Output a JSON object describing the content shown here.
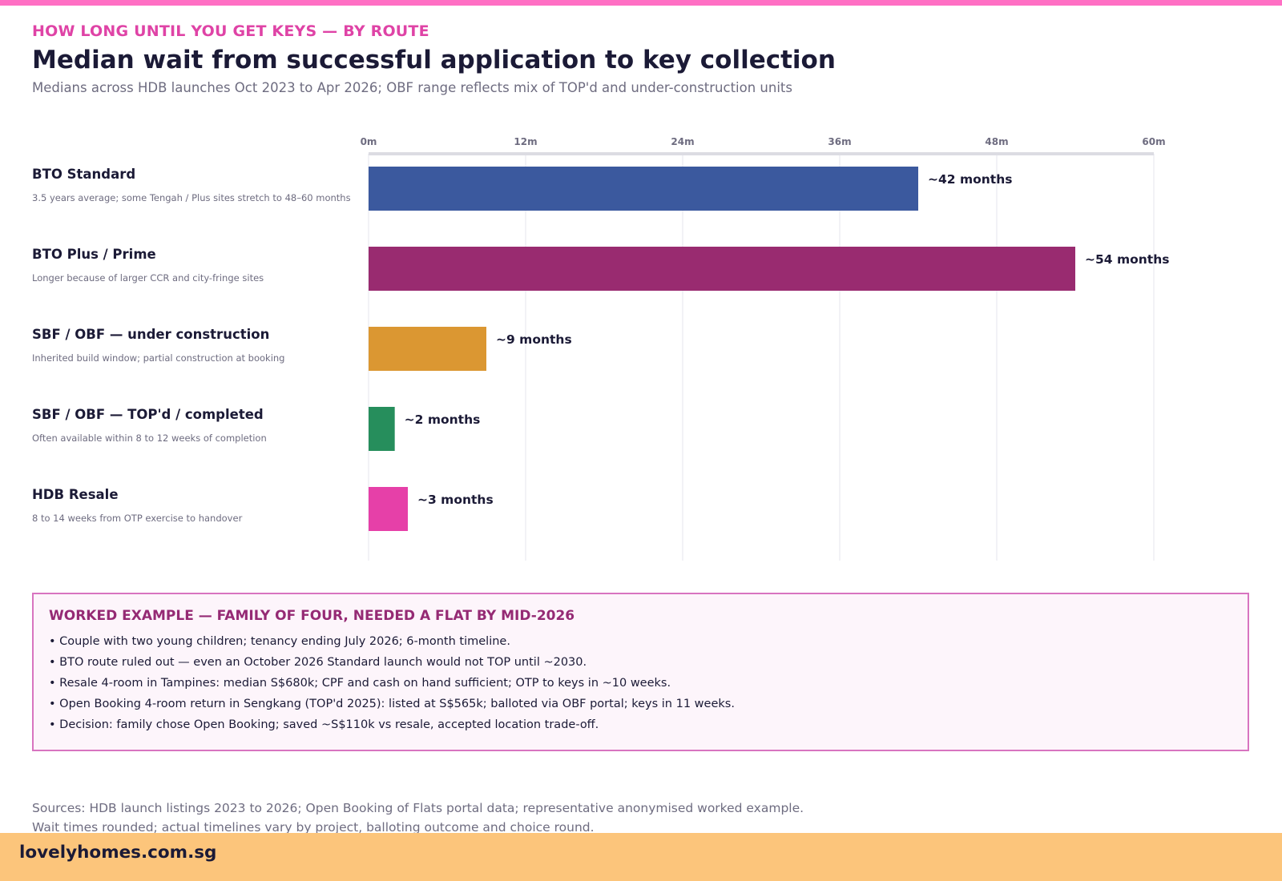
{
  "header": {
    "kicker": "HOW LONG UNTIL YOU GET KEYS — BY ROUTE",
    "title": "Median wait from successful application to key collection",
    "subtitle": "Medians across HDB launches Oct 2023 to Apr 2026; OBF range reflects mix of TOP'd and under-construction units"
  },
  "chart_data": {
    "type": "bar",
    "orientation": "horizontal",
    "categories": [
      "BTO Standard",
      "BTO Plus / Prime",
      "SBF / OBF — under construction",
      "SBF / OBF — TOP'd / completed",
      "HDB Resale"
    ],
    "notes": [
      "3.5 years average; some Tengah / Plus sites stretch to 48–60 months",
      "Longer because of larger CCR and city-fringe sites",
      "Inherited build window; partial construction at booking",
      "Often available within 8 to 12 weeks of completion",
      "8 to 14 weeks from OTP exercise to handover"
    ],
    "values": [
      42,
      54,
      9,
      2,
      3
    ],
    "value_labels": [
      "~42 months",
      "~54 months",
      "~9 months",
      "~2 months",
      "~3 months"
    ],
    "colors": [
      "#3b599e",
      "#992b70",
      "#db9732",
      "#268e5c",
      "#e640a8"
    ],
    "xlim": [
      0,
      60
    ],
    "x_ticks": [
      0,
      12,
      24,
      36,
      48,
      60
    ],
    "x_tick_labels": [
      "0m",
      "12m",
      "24m",
      "36m",
      "48m",
      "60m"
    ],
    "grid": true,
    "axis_position": "top",
    "unit": "months"
  },
  "example": {
    "title": "WORKED EXAMPLE — FAMILY OF FOUR, NEEDED A FLAT BY MID-2026",
    "items": [
      "• Couple with two young children; tenancy ending July 2026; 6-month timeline.",
      "• BTO route ruled out — even an October 2026 Standard launch would not TOP until ~2030.",
      "• Resale 4-room in Tampines: median S$680k; CPF and cash on hand sufficient; OTP to keys in ~10 weeks.",
      "• Open Booking 4-room return in Sengkang (TOP'd 2025): listed at S$565k; balloted via OBF portal; keys in 11 weeks.",
      "• Decision: family chose Open Booking; saved ~S$110k vs resale, accepted location trade-off."
    ]
  },
  "sources": {
    "line1": "Sources: HDB launch listings 2023 to 2026; Open Booking of Flats portal data; representative anonymised worked example.",
    "line2": "Wait times rounded; actual timelines vary by project, balloting outcome and choice round."
  },
  "footer": {
    "brand": "lovelyhomes.com.sg"
  },
  "colors": {
    "top_stripe": "#ff6fc4",
    "kicker": "#df43a6",
    "example_border": "#d874c0",
    "example_title": "#952a74",
    "footer_band": "#fcc57b"
  }
}
